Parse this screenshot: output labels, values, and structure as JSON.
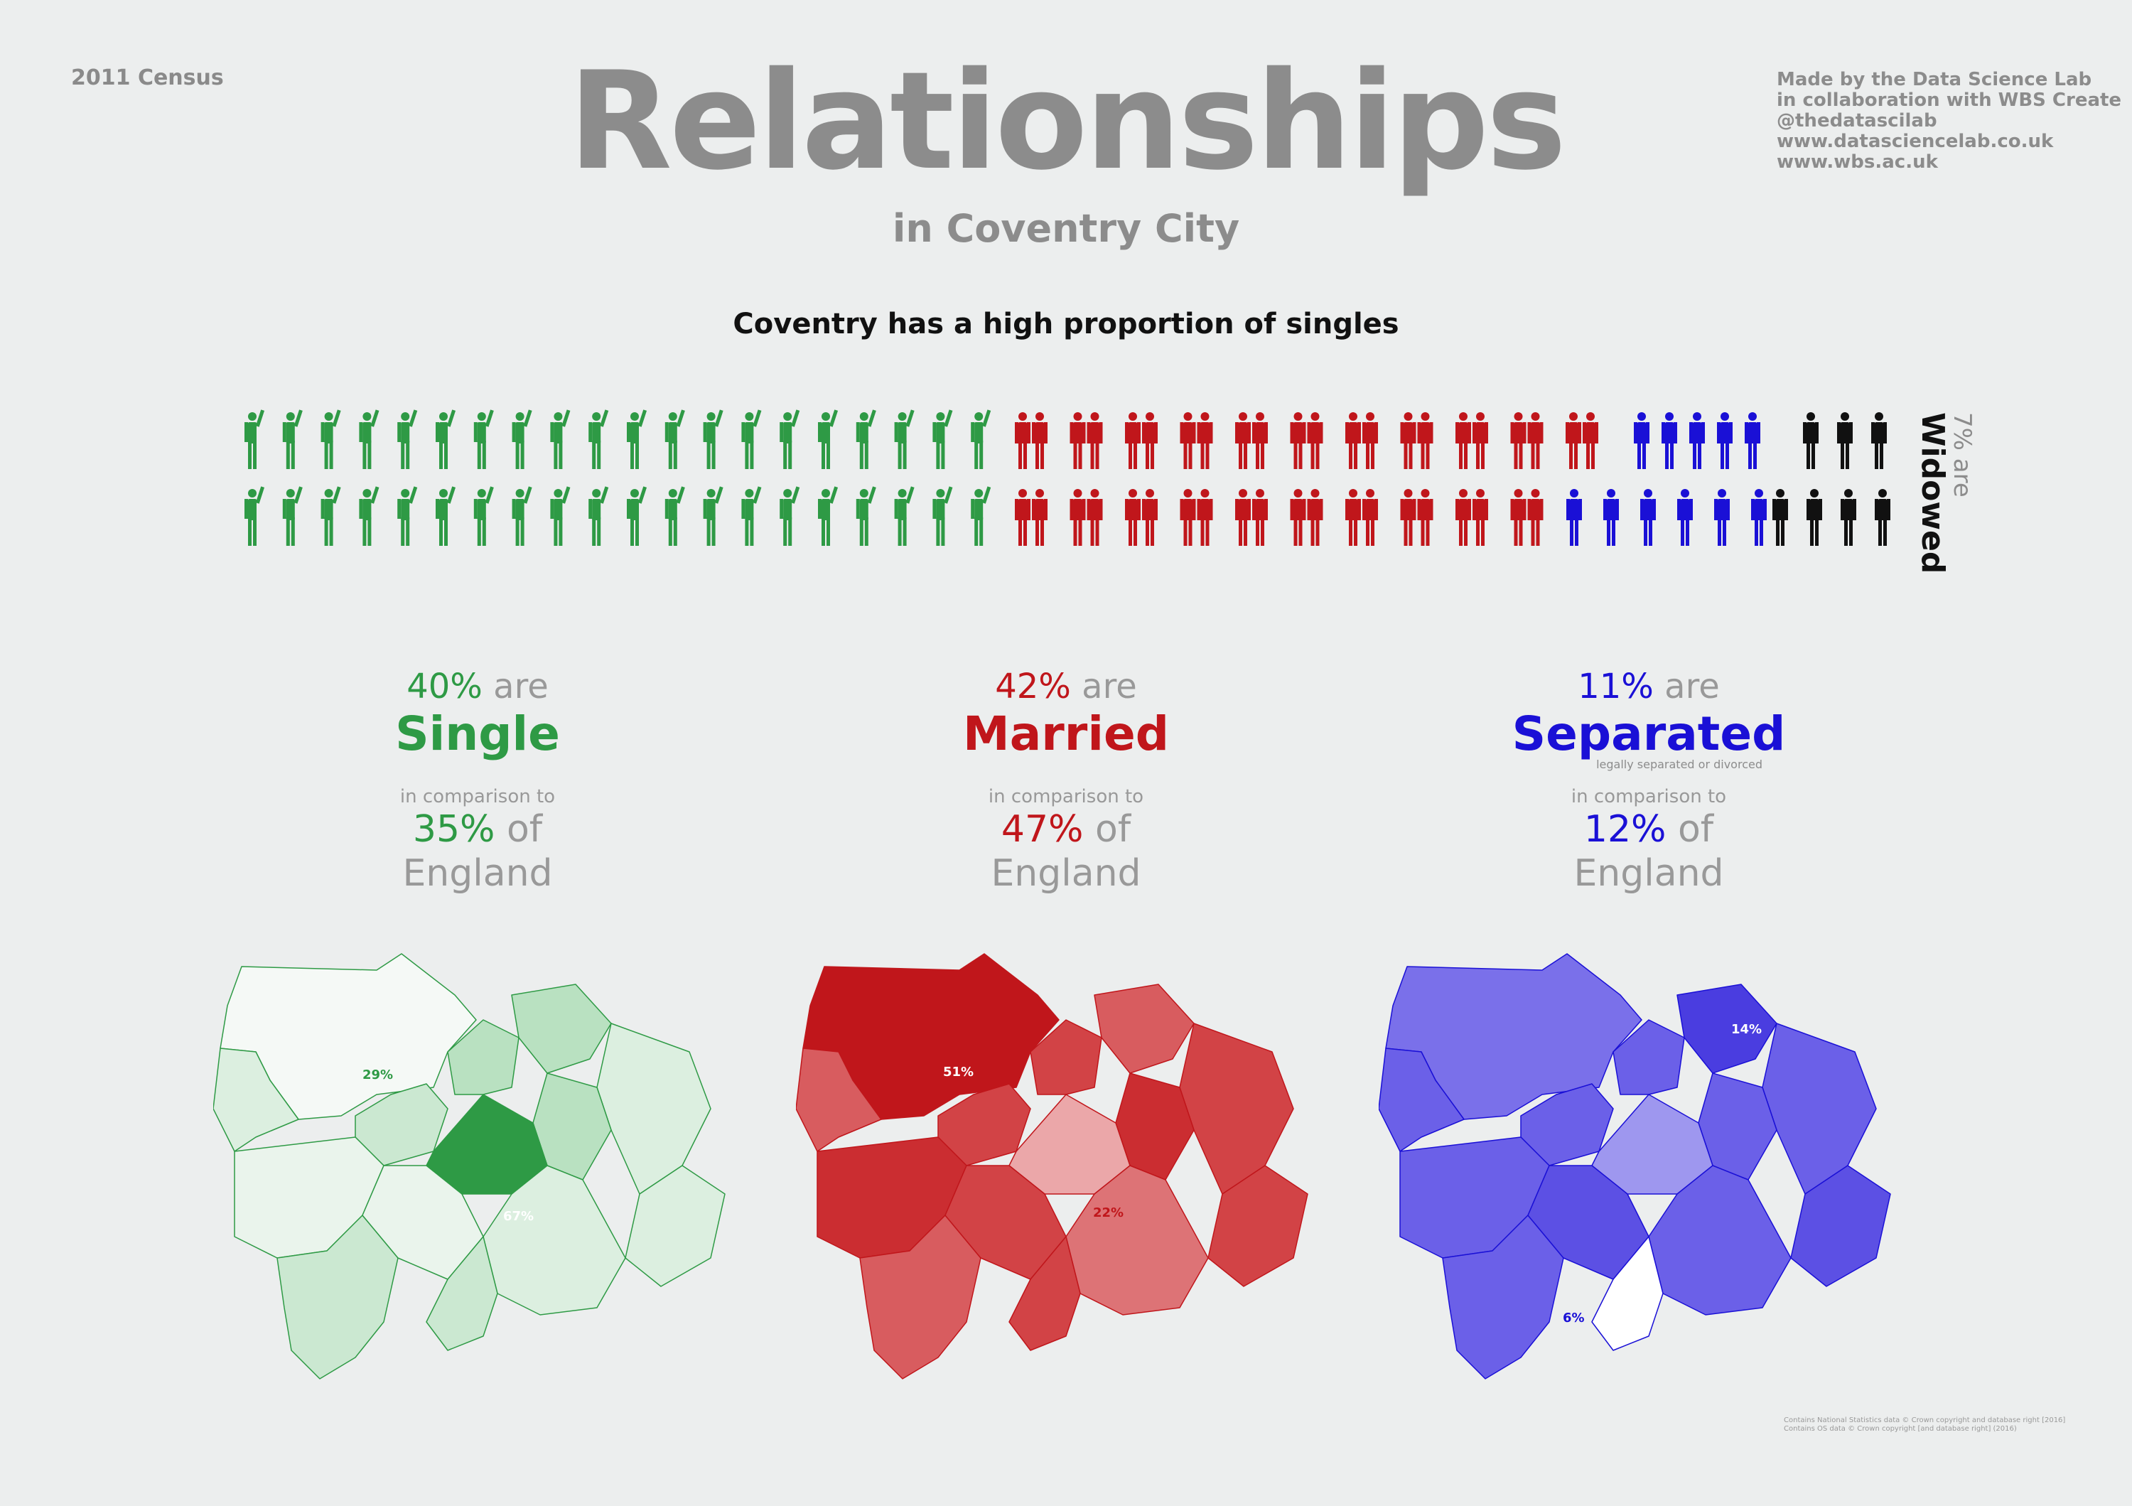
{
  "header": {
    "census": "2011 Census",
    "title": "Relationships",
    "subtitle": "in Coventry City",
    "credits": [
      "Made by the Data Science Lab",
      "in collaboration with WBS Create",
      "@thedatascilab",
      "www.datasciencelab.co.uk",
      "www.wbs.ac.uk"
    ]
  },
  "headline": "Coventry has a high proportion of singles",
  "pictogram": {
    "counts": {
      "single": 40,
      "married": 42,
      "separated": 11,
      "widowed": 7
    },
    "colors": {
      "single": "#2e9a45",
      "married": "#c0161b",
      "separated": "#1a10d6",
      "widowed": "#111111"
    },
    "icons": {
      "single": "person-waving-icon",
      "married": "couple-icon",
      "separated": "person-icon",
      "widowed": "person-icon"
    }
  },
  "widowed": {
    "pct": "7% are",
    "word": "Widowed"
  },
  "stats": {
    "single": {
      "pct": "40%",
      "are": "are",
      "category": "Single",
      "note": "",
      "comparison": "in comparison to",
      "england_pct": "35%",
      "of": "of",
      "england": "England",
      "color": "#2e9a45"
    },
    "married": {
      "pct": "42%",
      "are": "are",
      "category": "Married",
      "note": "",
      "comparison": "in comparison to",
      "england_pct": "47%",
      "of": "of",
      "england": "England",
      "color": "#c0161b"
    },
    "separated": {
      "pct": "11%",
      "are": "are",
      "category": "Separated",
      "note": "legally separated or divorced",
      "comparison": "in comparison to",
      "england_pct": "12%",
      "of": "of",
      "england": "England",
      "color": "#1a10d6"
    }
  },
  "maps": {
    "single": {
      "min_label": "29%",
      "max_label": "67%",
      "color": "#2e9a45"
    },
    "married": {
      "max_label": "51%",
      "min_label": "22%",
      "color": "#c0161b"
    },
    "separated": {
      "max_label": "14%",
      "min_label": "6%",
      "color": "#1a10d6"
    }
  },
  "footer": [
    "Contains National Statistics data © Crown copyright and database right [2016]",
    "Contains OS data © Crown copyright [and database right] (2016)"
  ]
}
